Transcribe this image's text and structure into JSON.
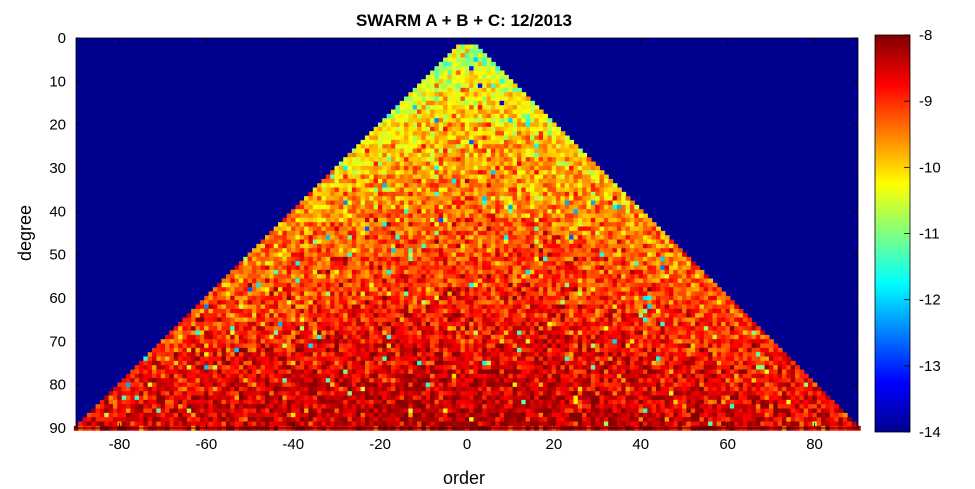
{
  "chart_data": {
    "type": "heatmap",
    "title": "SWARM A + B + C: 12/2013",
    "xlabel": "order",
    "ylabel": "degree",
    "xlim": [
      -90,
      90
    ],
    "ylim": [
      0,
      90
    ],
    "y_reversed": true,
    "x_ticks": [
      -80,
      -60,
      -40,
      -20,
      0,
      20,
      40,
      60,
      80
    ],
    "y_ticks": [
      0,
      10,
      20,
      30,
      40,
      50,
      60,
      70,
      80,
      90
    ],
    "colorbar": {
      "colormap": "jet",
      "range": [
        -14,
        -8
      ],
      "ticks": [
        -8,
        -9,
        -10,
        -11,
        -12,
        -13,
        -14
      ]
    },
    "background_value": -14,
    "valid_region": "abs(order) <= degree",
    "value_model": "approx -10.6 near degree 2 rising to about -8.3 near degree 90, with pixel-level scatter and occasional low outliers",
    "background_color": "#00008f"
  }
}
